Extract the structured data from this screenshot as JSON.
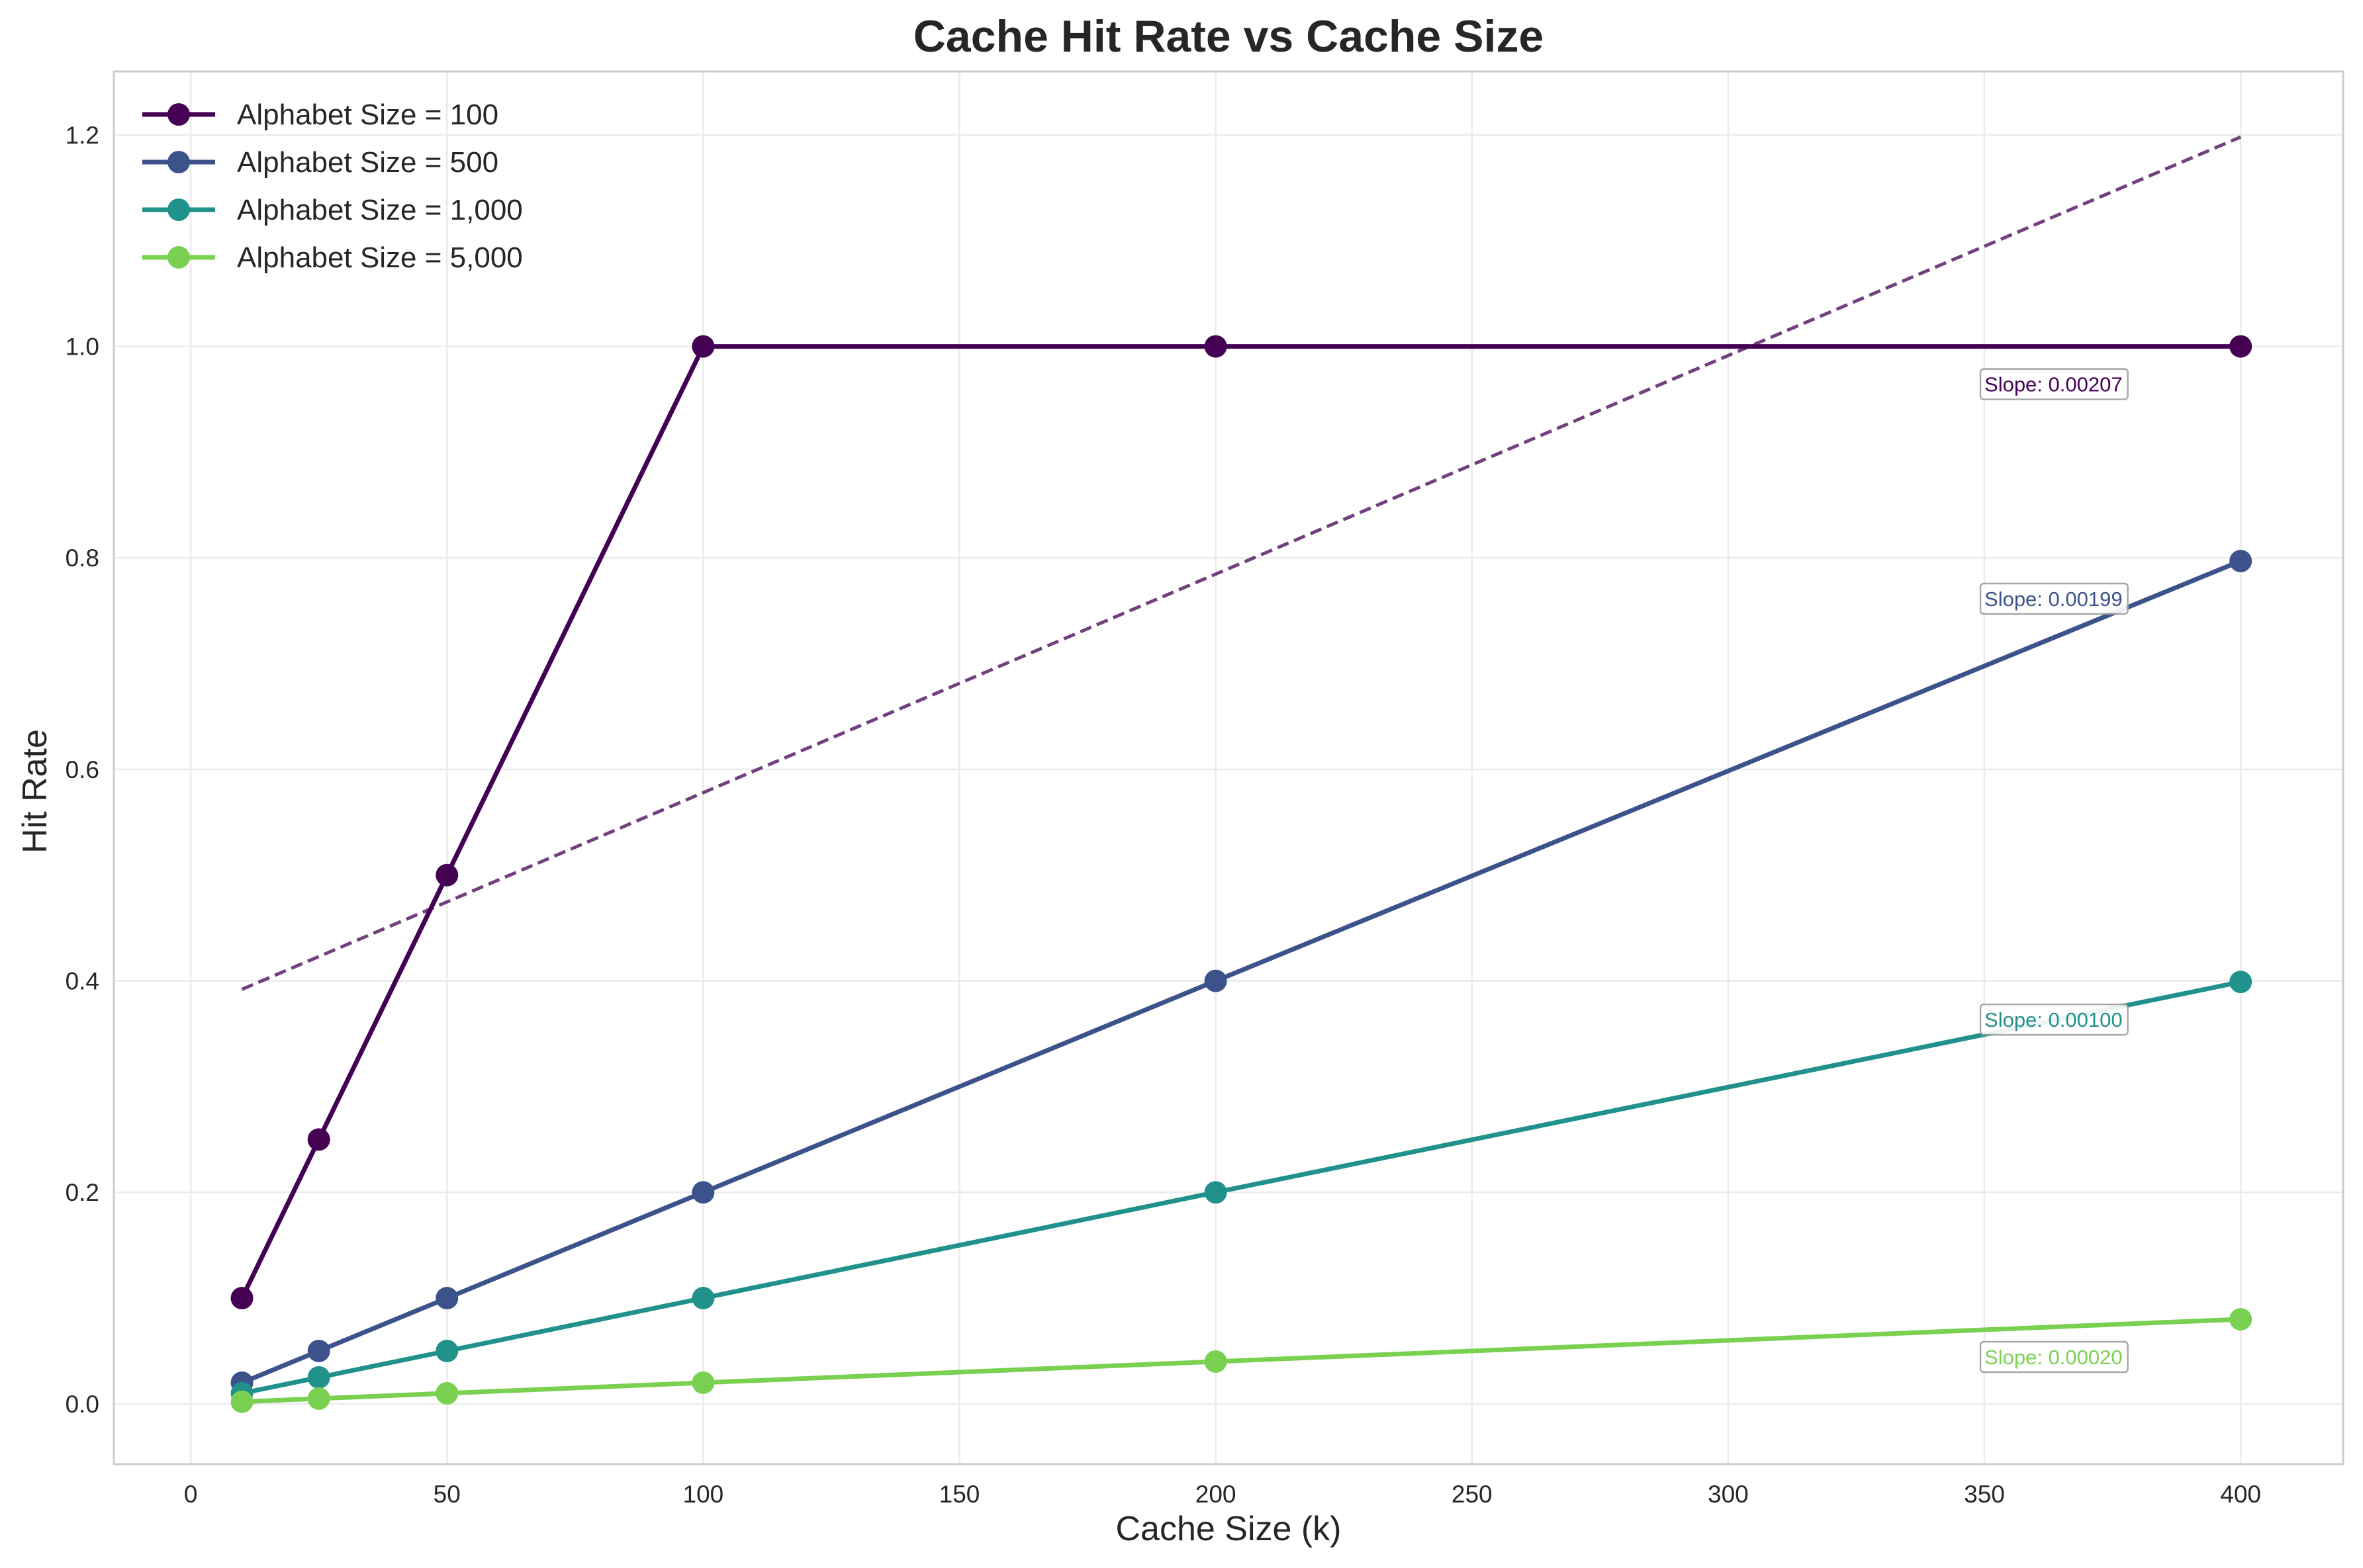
{
  "chart_data": {
    "type": "line",
    "title": "Cache Hit Rate vs Cache Size",
    "xlabel": "Cache Size (k)",
    "ylabel": "Hit Rate",
    "xlim": [
      -15,
      420
    ],
    "ylim": [
      -0.057,
      1.26
    ],
    "xticks": [
      0,
      50,
      100,
      150,
      200,
      250,
      300,
      350,
      400
    ],
    "yticks": [
      0.0,
      0.2,
      0.4,
      0.6,
      0.8,
      1.0,
      1.2
    ],
    "grid": true,
    "legend_position": "top-left",
    "x": [
      10,
      25,
      50,
      100,
      200,
      400
    ],
    "series": [
      {
        "name": "Alphabet Size = 100",
        "color": "#440154",
        "values": [
          0.1,
          0.25,
          0.5,
          1.0,
          1.0,
          1.0
        ],
        "slope_label": "Slope: 0.00207"
      },
      {
        "name": "Alphabet Size = 500",
        "color": "#3b528b",
        "values": [
          0.02,
          0.05,
          0.1,
          0.2,
          0.4,
          0.797
        ],
        "slope_label": "Slope: 0.00199"
      },
      {
        "name": "Alphabet Size = 1,000",
        "color": "#21918c",
        "values": [
          0.01,
          0.025,
          0.05,
          0.1,
          0.2,
          0.399
        ],
        "slope_label": "Slope: 0.00100"
      },
      {
        "name": "Alphabet Size = 5,000",
        "color": "#7ad151",
        "values": [
          0.002,
          0.005,
          0.01,
          0.02,
          0.04,
          0.08
        ],
        "slope_label": "Slope: 0.00020"
      }
    ],
    "trend_line": {
      "color": "#440154",
      "x": [
        10,
        400
      ],
      "y": [
        0.392,
        1.198
      ],
      "style": "dashed"
    },
    "slope_label_anchor_x": 350
  }
}
